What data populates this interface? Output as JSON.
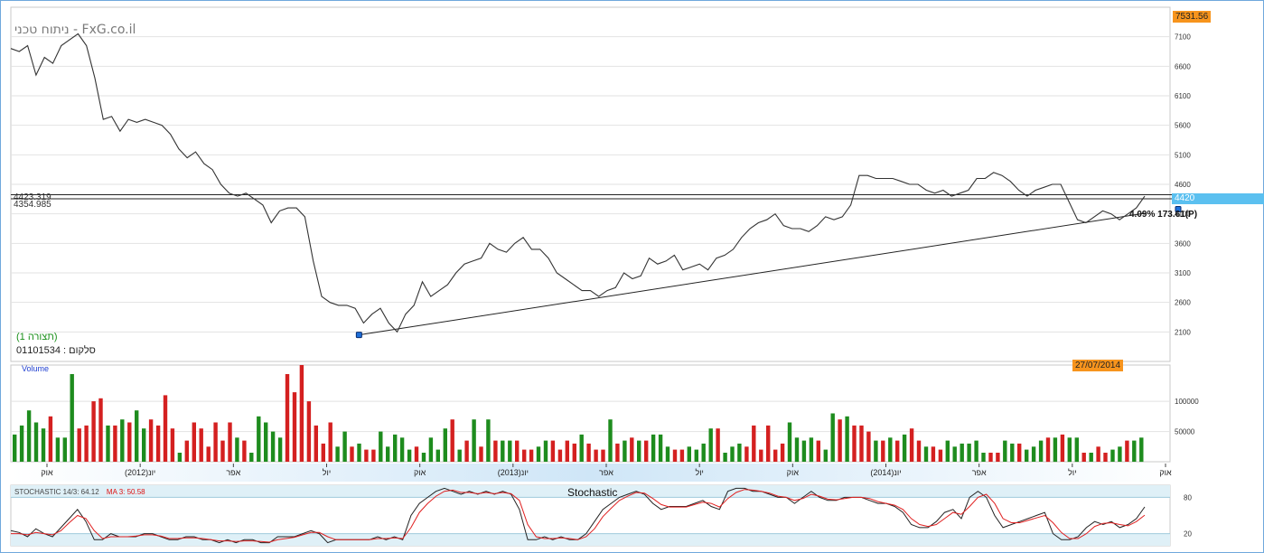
{
  "header": {
    "watermark": "ניתוח טכני - FxG.co.il",
    "last_price_badge": "7531.56",
    "current_price_badge": "4420",
    "date_badge": "27/07/2014"
  },
  "info": {
    "pattern_label": "(תצורה 1)",
    "stock_label": "סלקום : 01101534"
  },
  "annotations": {
    "hline_upper": "4423.319",
    "hline_lower": "4354.985",
    "trendline_label": "4.09% 173.61(P)"
  },
  "colors": {
    "price_line": "#333333",
    "volume_up": "#1e8c1e",
    "volume_down": "#d42020",
    "stoch_k": "#222222",
    "stoch_ma": "#e02020",
    "axis_band": "#cfe6f7"
  },
  "chart_data": [
    {
      "type": "line",
      "series": [
        {
          "values": [
            6900,
            6850,
            6950,
            6450,
            6750,
            6650,
            6950,
            7050,
            7150,
            6950,
            6400,
            5700,
            5750,
            5500,
            5700,
            5650,
            5700,
            5650,
            5600,
            5450,
            5200,
            5050,
            5150,
            4950,
            4850,
            4600,
            4450,
            4400,
            4450,
            4350,
            4250,
            3950,
            4150,
            4200,
            4200,
            4050,
            3300,
            2700,
            2600,
            2550,
            2550,
            2500,
            2250,
            2400,
            2500,
            2250,
            2100,
            2400,
            2550,
            2950,
            2700,
            2800,
            2900,
            3100,
            3250,
            3300,
            3350,
            3600,
            3500,
            3450,
            3600,
            3700,
            3500,
            3500,
            3350,
            3100,
            3000,
            2900,
            2800,
            2800,
            2700,
            2800,
            2850,
            3100,
            3000,
            3050,
            3350,
            3250,
            3300,
            3400,
            3150,
            3200,
            3250,
            3150,
            3350,
            3400,
            3500,
            3700,
            3850,
            3950,
            4000,
            4100,
            3900,
            3850,
            3850,
            3800,
            3900,
            4050,
            4000,
            4050,
            4250,
            4750,
            4750,
            4700,
            4700,
            4700,
            4650,
            4600,
            4600,
            4500,
            4450,
            4500,
            4400,
            4450,
            4500,
            4700,
            4700,
            4800,
            4750,
            4650,
            4500,
            4400,
            4500,
            4550,
            4600,
            4600,
            4300,
            4000,
            3950,
            4050,
            4150,
            4100,
            4000,
            4100,
            4200,
            4400
          ],
          "x_start": "2011-08-01",
          "x_end": "2014-07-27"
        }
      ],
      "x_tick_labels": [
        "אוק",
        "יונ(2012)",
        "אפר",
        "יול",
        "אוק",
        "יונ(2013)",
        "אפר",
        "יול",
        "אוק",
        "יונ(2014)",
        "אפר",
        "יול",
        "אוק"
      ],
      "y_ticks": [
        7100,
        6600,
        6100,
        5600,
        5100,
        4600,
        4100,
        3600,
        3100,
        2600,
        2100
      ],
      "ylim": [
        1600,
        7600
      ],
      "trendline": {
        "from": {
          "date": "2012-07-01",
          "value": 2050
        },
        "to": {
          "date": "2014-07-27",
          "value": 4110
        }
      },
      "hlines": [
        4423.319,
        4354.985
      ]
    },
    {
      "type": "bar",
      "title": "Volume",
      "y_ticks": [
        50000,
        100000
      ],
      "ylim": [
        0,
        160000
      ],
      "values": [
        45000,
        60000,
        85000,
        65000,
        55000,
        75000,
        40000,
        40000,
        145000,
        55000,
        60000,
        100000,
        105000,
        60000,
        60000,
        70000,
        65000,
        85000,
        55000,
        70000,
        60000,
        110000,
        55000,
        15000,
        35000,
        65000,
        55000,
        25000,
        65000,
        35000,
        65000,
        40000,
        35000,
        15000,
        75000,
        65000,
        50000,
        40000,
        145000,
        115000,
        160000,
        100000,
        60000,
        30000,
        65000,
        25000,
        50000,
        25000,
        30000,
        20000,
        20000,
        50000,
        25000,
        45000,
        40000,
        20000,
        25000,
        15000,
        40000,
        20000,
        55000,
        70000,
        20000,
        35000,
        70000,
        25000,
        70000,
        35000,
        35000,
        35000,
        35000,
        20000,
        20000,
        25000,
        35000,
        35000,
        20000,
        35000,
        30000,
        45000,
        30000,
        20000,
        20000,
        70000,
        30000,
        35000,
        40000,
        35000,
        35000,
        45000,
        45000,
        25000,
        20000,
        20000,
        25000,
        20000,
        30000,
        55000,
        55000,
        15000,
        25000,
        30000,
        25000,
        60000,
        20000,
        60000,
        20000,
        30000,
        65000,
        40000,
        35000,
        40000,
        35000,
        20000,
        80000,
        70000,
        75000,
        60000,
        60000,
        50000,
        35000,
        35000,
        40000,
        35000,
        45000,
        55000,
        35000,
        25000,
        25000,
        20000,
        35000,
        25000,
        30000,
        30000,
        35000,
        15000,
        15000,
        15000,
        35000,
        30000,
        30000,
        20000,
        25000,
        35000,
        40000,
        40000,
        45000,
        40000,
        40000,
        15000,
        15000,
        25000,
        15000,
        20000,
        25000,
        35000,
        35000,
        40000
      ],
      "up": [
        1,
        1,
        1,
        1,
        1,
        0,
        1,
        1,
        1,
        0,
        0,
        0,
        0,
        1,
        0,
        1,
        0,
        1,
        1,
        0,
        0,
        0,
        0,
        1,
        0,
        0,
        0,
        0,
        0,
        0,
        0,
        1,
        0,
        1,
        1,
        1,
        1,
        1,
        0,
        0,
        0,
        0,
        0,
        0,
        0,
        1,
        1,
        0,
        1,
        0,
        0,
        1,
        1,
        1,
        1,
        1,
        0,
        1,
        1,
        1,
        1,
        0,
        1,
        0,
        1,
        0,
        1,
        0,
        1,
        1,
        0,
        0,
        0,
        1,
        1,
        0,
        0,
        0,
        0,
        1,
        0,
        0,
        0,
        1,
        0,
        1,
        0,
        1,
        0,
        1,
        1,
        1,
        0,
        0,
        1,
        1,
        1,
        1,
        0,
        1,
        1,
        1,
        0,
        0,
        0,
        0,
        0,
        0,
        1,
        1,
        1,
        1,
        0,
        1,
        1,
        0,
        1,
        0,
        0,
        0,
        1,
        0,
        1,
        0,
        1,
        0,
        0,
        1,
        0,
        0,
        1,
        1,
        1,
        1,
        1,
        1,
        0,
        0,
        1,
        1,
        0,
        1,
        1,
        1,
        0,
        1,
        0,
        1,
        1,
        0,
        1,
        0,
        0,
        1,
        1,
        0,
        1,
        1,
        1,
        1
      ],
      "note": "up: 1 = green bar, 0 = red bar"
    },
    {
      "type": "line",
      "title": "Stochastic",
      "label": "STOCHASTIC 14/3: 64.12",
      "ma_label": "MA 3: 50.58",
      "y_ticks": [
        20,
        80
      ],
      "ylim": [
        0,
        100
      ],
      "series": [
        {
          "name": "STOCHASTIC 14/3",
          "values": [
            25,
            22,
            15,
            28,
            20,
            15,
            30,
            45,
            60,
            40,
            10,
            10,
            20,
            15,
            15,
            15,
            20,
            20,
            15,
            10,
            10,
            15,
            15,
            10,
            10,
            5,
            10,
            5,
            10,
            10,
            5,
            5,
            15,
            15,
            15,
            20,
            25,
            20,
            5,
            10,
            10,
            10,
            10,
            10,
            15,
            10,
            15,
            10,
            50,
            70,
            80,
            90,
            95,
            90,
            85,
            90,
            85,
            90,
            85,
            90,
            85,
            60,
            10,
            10,
            15,
            10,
            15,
            10,
            10,
            20,
            40,
            60,
            70,
            80,
            85,
            90,
            85,
            70,
            60,
            65,
            65,
            65,
            70,
            75,
            65,
            60,
            90,
            95,
            95,
            90,
            90,
            85,
            80,
            80,
            70,
            80,
            90,
            80,
            75,
            75,
            80,
            80,
            80,
            75,
            70,
            70,
            65,
            55,
            35,
            30,
            30,
            40,
            55,
            60,
            45,
            80,
            90,
            80,
            50,
            30,
            35,
            40,
            45,
            50,
            55,
            20,
            10,
            10,
            15,
            30,
            40,
            35,
            40,
            30,
            35,
            45,
            64.12
          ]
        },
        {
          "name": "MA 3",
          "values": [
            20,
            20,
            18,
            22,
            20,
            18,
            25,
            38,
            50,
            45,
            25,
            12,
            15,
            15,
            15,
            16,
            18,
            18,
            16,
            12,
            12,
            13,
            13,
            12,
            10,
            8,
            8,
            7,
            8,
            8,
            7,
            6,
            10,
            12,
            14,
            18,
            22,
            22,
            15,
            10,
            10,
            10,
            10,
            10,
            12,
            12,
            13,
            12,
            30,
            55,
            70,
            82,
            90,
            92,
            88,
            88,
            86,
            88,
            86,
            88,
            86,
            75,
            35,
            15,
            12,
            12,
            13,
            12,
            10,
            15,
            28,
            48,
            62,
            75,
            82,
            88,
            87,
            78,
            68,
            64,
            64,
            64,
            68,
            72,
            70,
            64,
            78,
            88,
            93,
            92,
            90,
            87,
            82,
            80,
            75,
            78,
            85,
            82,
            77,
            76,
            78,
            80,
            80,
            78,
            73,
            70,
            67,
            60,
            45,
            35,
            32,
            35,
            45,
            55,
            52,
            65,
            80,
            85,
            70,
            45,
            38,
            38,
            42,
            46,
            50,
            38,
            22,
            12,
            12,
            20,
            32,
            37,
            38,
            35,
            33,
            40,
            50.58
          ]
        }
      ]
    }
  ]
}
